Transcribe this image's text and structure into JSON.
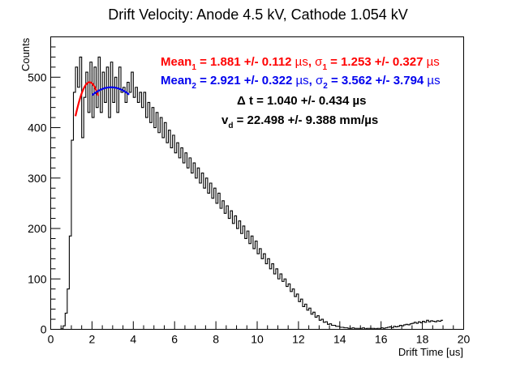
{
  "chart_data": {
    "type": "histogram",
    "title": "Drift Velocity: Anode 4.5 kV, Cathode 1.054 kV",
    "xlabel": "Drift Time [us]",
    "ylabel": "Counts",
    "xlim": [
      0,
      20
    ],
    "ylim": [
      0,
      580
    ],
    "xticks": [
      0,
      2,
      4,
      6,
      8,
      10,
      12,
      14,
      16,
      18,
      20
    ],
    "xtick_labels": [
      "0",
      "2",
      "4",
      "6",
      "8",
      "10",
      "12",
      "14",
      "16",
      "18",
      "20"
    ],
    "yticks": [
      0,
      100,
      200,
      300,
      400,
      500
    ],
    "ytick_labels": [
      "0",
      "100",
      "200",
      "300",
      "400",
      "500"
    ],
    "grid": false,
    "histogram": {
      "bin_width": 0.1,
      "x_start": 0.0,
      "counts": [
        0,
        0,
        0,
        0,
        0,
        1,
        7,
        32,
        80,
        185,
        375,
        470,
        520,
        480,
        540,
        380,
        460,
        510,
        430,
        530,
        420,
        520,
        440,
        540,
        430,
        510,
        450,
        520,
        420,
        530,
        450,
        500,
        430,
        520,
        470,
        480,
        450,
        490,
        470,
        510,
        460,
        480,
        450,
        470,
        440,
        470,
        420,
        450,
        410,
        440,
        400,
        430,
        390,
        420,
        380,
        410,
        370,
        395,
        360,
        385,
        350,
        370,
        340,
        360,
        330,
        350,
        320,
        340,
        310,
        330,
        300,
        320,
        290,
        310,
        280,
        300,
        270,
        290,
        260,
        280,
        250,
        270,
        240,
        255,
        230,
        245,
        220,
        235,
        210,
        225,
        200,
        215,
        190,
        205,
        180,
        195,
        170,
        185,
        160,
        175,
        150,
        160,
        140,
        150,
        130,
        140,
        120,
        130,
        110,
        120,
        100,
        110,
        95,
        100,
        85,
        90,
        75,
        80,
        65,
        70,
        55,
        60,
        45,
        50,
        38,
        42,
        30,
        34,
        24,
        27,
        18,
        20,
        14,
        15,
        10,
        11,
        8,
        8,
        6,
        6,
        4,
        4,
        3,
        3,
        2,
        2,
        3,
        2,
        2,
        2,
        2,
        3,
        1,
        2,
        2,
        2,
        2,
        1,
        2,
        2,
        3,
        2,
        3,
        4,
        5,
        3,
        6,
        5,
        6,
        8,
        7,
        9,
        10,
        9,
        11,
        12,
        14,
        12,
        15,
        13,
        16,
        14,
        18,
        15,
        17,
        16,
        15,
        17,
        16,
        18
      ]
    },
    "fits": [
      {
        "name": "fit1",
        "color": "#ff0000",
        "mean": 1.881,
        "sigma": 1.253,
        "amplitude": 490,
        "xrange": [
          1.2,
          2.3
        ]
      },
      {
        "name": "fit2",
        "color": "#0000ee",
        "mean": 2.921,
        "sigma": 3.562,
        "amplitude": 480,
        "xrange": [
          2.0,
          3.8
        ]
      }
    ],
    "annotations": [
      {
        "color": "#ff0000",
        "parts": [
          "Mean",
          "1",
          " = 1.881 +/- 0.112 ",
          "µs",
          ", ",
          "σ",
          "1",
          " = 1.253 +/- 0.327 ",
          "µs"
        ]
      },
      {
        "color": "#0000ee",
        "parts": [
          "Mean",
          "2",
          " = 2.921 +/- 0.322 ",
          "µs",
          ", ",
          "σ",
          "2",
          " = 3.562 +/- 3.794 ",
          "µs"
        ]
      },
      {
        "color": "#000000",
        "text": "Δ t = 1.040 +/- 0.434 µs"
      },
      {
        "color": "#000000",
        "text_main": "v",
        "text_sub": "d",
        "text_rest": " = 22.498 +/- 9.388 mm/µs"
      }
    ]
  }
}
